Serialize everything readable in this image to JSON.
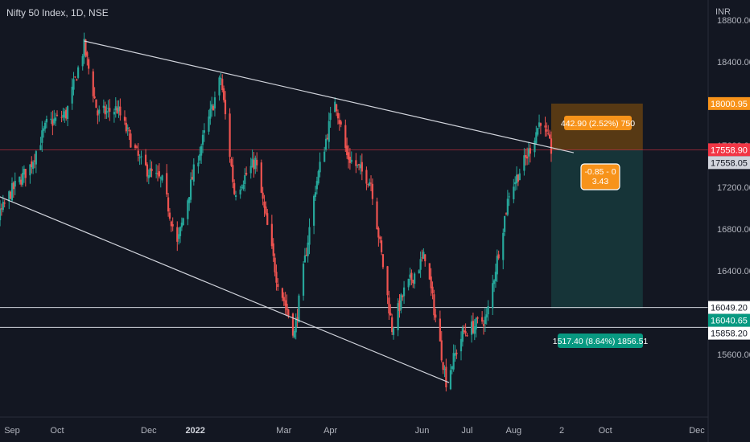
{
  "header": {
    "title": "Nifty 50 Index, 1D, NSE",
    "currency": "INR"
  },
  "colors": {
    "background": "#131722",
    "up": "#26a69a",
    "down": "#ef5350",
    "line": "#d1d4dc",
    "profit_fill": "#16363a",
    "stop_fill": "#5b3b14",
    "orange": "#f7931a",
    "teal": "#089981",
    "red_tag": "#f23645"
  },
  "chart_data": {
    "type": "candlestick",
    "title": "Nifty 50 Index, 1D, NSE",
    "ylabel": "INR",
    "ylim": [
      15300,
      19300
    ],
    "y_ticks": [
      15600,
      16000,
      16400,
      16800,
      17200,
      17600,
      18000,
      18400,
      18800
    ],
    "y_tick_labels": [
      "15600.00",
      "16000.00",
      "16400.00",
      "16800.00",
      "17200.00",
      "17600.00",
      "18000.00",
      "18400.00",
      "18800.00"
    ],
    "x_ticks": [
      {
        "label": "Sep",
        "date": "2021-09-01",
        "bold": false
      },
      {
        "label": "Oct",
        "date": "2021-10-01",
        "bold": false
      },
      {
        "label": "Dec",
        "date": "2021-12-01",
        "bold": false
      },
      {
        "label": "2022",
        "date": "2022-01-01",
        "bold": true
      },
      {
        "label": "Mar",
        "date": "2022-03-01",
        "bold": false
      },
      {
        "label": "Apr",
        "date": "2022-04-01",
        "bold": false
      },
      {
        "label": "Jun",
        "date": "2022-06-01",
        "bold": false
      },
      {
        "label": "Jul",
        "date": "2022-07-01",
        "bold": false
      },
      {
        "label": "Aug",
        "date": "2022-08-01",
        "bold": false
      },
      {
        "label": "2",
        "date": "2022-09-02",
        "bold": false
      },
      {
        "label": "Oct",
        "date": "2022-10-01",
        "bold": false
      },
      {
        "label": "Dec",
        "date": "2022-12-01",
        "bold": false
      }
    ],
    "price_path": [
      [
        "2021-08-02",
        16600
      ],
      [
        "2021-08-16",
        16700
      ],
      [
        "2021-08-31",
        17150
      ],
      [
        "2021-09-13",
        17400
      ],
      [
        "2021-09-24",
        17800
      ],
      [
        "2021-10-07",
        17900
      ],
      [
        "2021-10-19",
        18550
      ],
      [
        "2021-10-28",
        17900
      ],
      [
        "2021-11-10",
        17950
      ],
      [
        "2021-11-25",
        17450
      ],
      [
        "2021-12-01",
        17350
      ],
      [
        "2021-12-10",
        17250
      ],
      [
        "2021-12-20",
        16650
      ],
      [
        "2021-12-31",
        17350
      ],
      [
        "2022-01-18",
        18250
      ],
      [
        "2022-01-27",
        17150
      ],
      [
        "2022-02-10",
        17450
      ],
      [
        "2022-02-24",
        16350
      ],
      [
        "2022-03-08",
        15800
      ],
      [
        "2022-03-22",
        17200
      ],
      [
        "2022-04-04",
        18050
      ],
      [
        "2022-04-12",
        17500
      ],
      [
        "2022-04-28",
        17250
      ],
      [
        "2022-05-12",
        15850
      ],
      [
        "2022-05-20",
        16200
      ],
      [
        "2022-06-03",
        16550
      ],
      [
        "2022-06-17",
        15350
      ],
      [
        "2022-06-28",
        15800
      ],
      [
        "2022-07-14",
        15950
      ],
      [
        "2022-07-29",
        17150
      ],
      [
        "2022-08-10",
        17500
      ],
      [
        "2022-08-19",
        17850
      ],
      [
        "2022-08-26",
        17558
      ]
    ],
    "trendlines": [
      {
        "from": [
          "2021-10-19",
          18600
        ],
        "to": [
          "2022-09-10",
          17530
        ]
      },
      {
        "from": [
          "2021-08-22",
          17120
        ],
        "to": [
          "2022-06-19",
          15330
        ]
      }
    ],
    "horizontal_lines": [
      16049.2,
      15858.2
    ],
    "current_price_line": 17558.9,
    "position": {
      "type": "short",
      "entry": 17558.05,
      "stop": 18000.95,
      "target": 16040.65,
      "start": "2022-08-26",
      "end": "2022-10-26",
      "stop_label": "442.90 (2.52%) 750",
      "target_label": "1517.40 (8.64%) 1856.51",
      "center_label_1": "-0.85 - 0",
      "center_label_2": "3.43"
    },
    "price_tags": [
      {
        "value": 18000.95,
        "label": "18000.95",
        "bg": "#f7931a",
        "fg": "#ffffff"
      },
      {
        "value": 17558.9,
        "label": "17558.90",
        "bg": "#f23645",
        "fg": "#ffffff"
      },
      {
        "value": 17558.05,
        "label": "17558.05",
        "bg": "#d1d4dc",
        "fg": "#131722"
      },
      {
        "value": 16049.2,
        "label": "16049.20",
        "bg": "#ffffff",
        "fg": "#131722"
      },
      {
        "value": 16040.65,
        "label": "16040.65",
        "bg": "#089981",
        "fg": "#ffffff"
      },
      {
        "value": 15858.2,
        "label": "15858.20",
        "bg": "#ffffff",
        "fg": "#131722"
      }
    ]
  }
}
